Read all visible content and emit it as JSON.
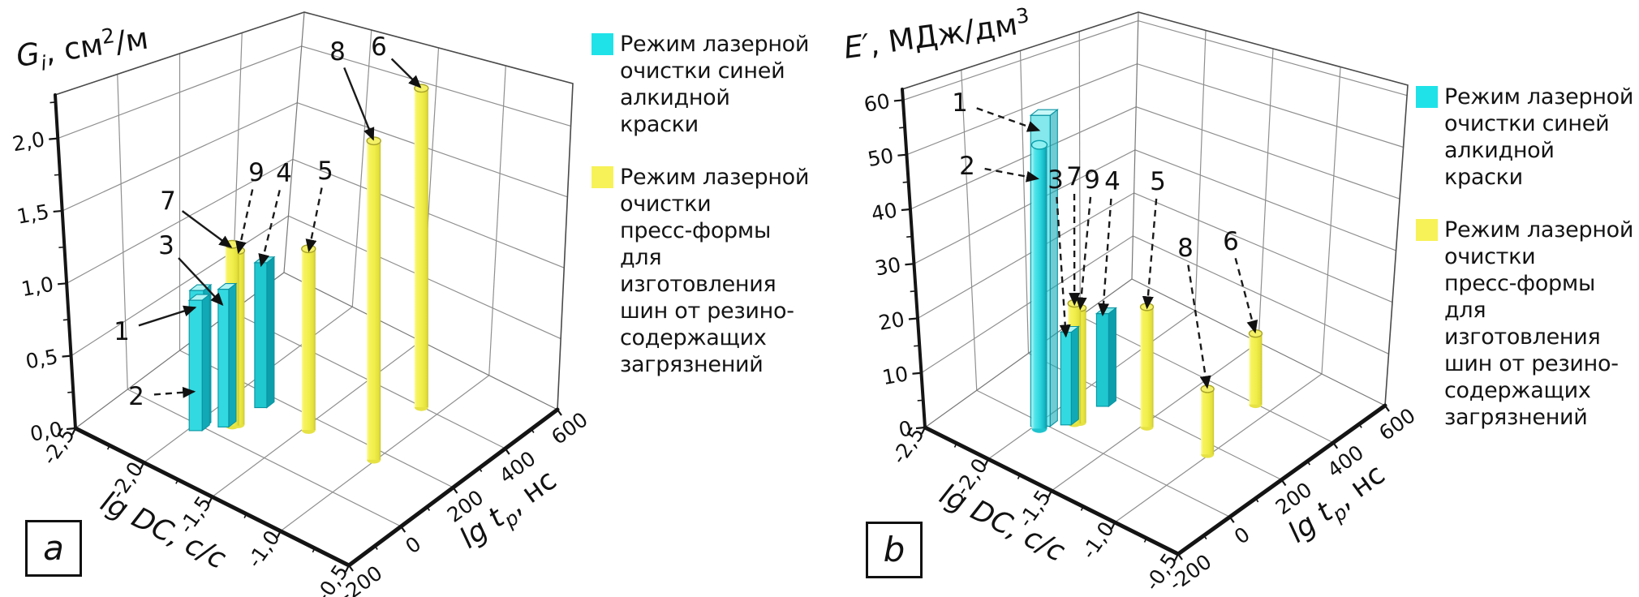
{
  "legend": {
    "series": [
      {
        "swatch_color": "#1fe2e9",
        "label": "Режим лазерной\nочистки синей\nалкидной краски"
      },
      {
        "swatch_color": "#f7f257",
        "label": "Режим лазерной\nочистки\nпресс-формы\nдля изготовления\nшин от резино-\nсодержащих\nзагрязнений"
      }
    ]
  },
  "chart_data": [
    {
      "type": "bar",
      "projection": "3d",
      "panel_letter": "a",
      "axes": {
        "z": {
          "label_text": "Gi, см²/м",
          "label_parts": {
            "head": "G",
            "sub": "i",
            "mid": ", см",
            "sup": "2",
            "tail": "/м"
          },
          "max": 2.3,
          "ticks": [
            {
              "value": 0.0,
              "label": "0,0"
            },
            {
              "value": 0.5,
              "label": "0,5"
            },
            {
              "value": 1.0,
              "label": "1,0"
            },
            {
              "value": 1.5,
              "label": "1,5"
            },
            {
              "value": 2.0,
              "label": "2,0"
            }
          ]
        },
        "x": {
          "label": "lg DC, с/с",
          "range": [
            -2.5,
            -0.5
          ],
          "ticks": [
            {
              "value": -2.5,
              "label": "-2,5"
            },
            {
              "value": -2.0,
              "label": "-2,0"
            },
            {
              "value": -1.5,
              "label": "-1,5"
            },
            {
              "value": -1.0,
              "label": "-1,0"
            },
            {
              "value": -0.5,
              "label": "-0,5"
            }
          ]
        },
        "y": {
          "label_text": "lg tp, нс",
          "label_parts": {
            "head": "lg t",
            "sub": "p",
            "tail": ", нс"
          },
          "range": [
            -200,
            600
          ],
          "ticks": [
            {
              "value": -200,
              "label": "-200"
            },
            {
              "value": 0,
              "label": "0"
            },
            {
              "value": 200,
              "label": "200"
            },
            {
              "value": 400,
              "label": "400"
            },
            {
              "value": 600,
              "label": "600"
            }
          ]
        }
      },
      "bars": [
        {
          "mode": "1",
          "series": 0,
          "shape": "prism",
          "lg_dc": -1.97,
          "t_p_ns": -13,
          "value": 0.95
        },
        {
          "mode": "2",
          "series": 0,
          "shape": "prism",
          "lg_dc": -1.96,
          "t_p_ns": -22,
          "value": 0.9
        },
        {
          "mode": "3",
          "series": 0,
          "shape": "prism",
          "lg_dc": -1.86,
          "t_p_ns": 32,
          "value": 0.95
        },
        {
          "mode": "4",
          "series": 0,
          "shape": "prism",
          "lg_dc": -1.81,
          "t_p_ns": 149,
          "value": 1.0
        },
        {
          "mode": "5",
          "series": 1,
          "shape": "cylinder",
          "lg_dc": -1.47,
          "t_p_ns": 154,
          "value": 1.25
        },
        {
          "mode": "6",
          "series": 1,
          "shape": "cylinder",
          "lg_dc": -1.11,
          "t_p_ns": 398,
          "value": 2.2
        },
        {
          "mode": "7",
          "series": 1,
          "shape": "cylinder",
          "lg_dc": -1.83,
          "t_p_ns": 50,
          "value": 1.25
        },
        {
          "mode": "8",
          "series": 1,
          "shape": "cylinder",
          "lg_dc": -1.01,
          "t_p_ns": 163,
          "value": 2.2
        },
        {
          "mode": "9",
          "series": 1,
          "shape": "cylinder",
          "lg_dc": -1.81,
          "t_p_ns": 62,
          "value": 1.2
        }
      ]
    },
    {
      "type": "bar",
      "projection": "3d",
      "panel_letter": "b",
      "axes": {
        "z": {
          "label_text": "E′, МДж/дм³",
          "label_parts": {
            "head": "E′",
            "sub": "",
            "mid": ", МДж/дм",
            "sup": "3",
            "tail": ""
          },
          "max": 62,
          "ticks": [
            {
              "value": 0,
              "label": "0"
            },
            {
              "value": 10,
              "label": "10"
            },
            {
              "value": 20,
              "label": "20"
            },
            {
              "value": 30,
              "label": "30"
            },
            {
              "value": 40,
              "label": "40"
            },
            {
              "value": 50,
              "label": "50"
            },
            {
              "value": 60,
              "label": "60"
            }
          ]
        },
        "x": {
          "label": "lg DC, с/с",
          "range": [
            -2.5,
            -0.5
          ],
          "ticks": [
            {
              "value": -2.5,
              "label": "-2,5"
            },
            {
              "value": -2.0,
              "label": "-2,0"
            },
            {
              "value": -1.5,
              "label": "-1,5"
            },
            {
              "value": -1.0,
              "label": "-1,0"
            },
            {
              "value": -0.5,
              "label": "-0,5"
            }
          ]
        },
        "y": {
          "label_text": "lg tp, нс",
          "label_parts": {
            "head": "lg t",
            "sub": "p",
            "tail": ", нс"
          },
          "range": [
            -200,
            600
          ],
          "ticks": [
            {
              "value": -200,
              "label": "-200"
            },
            {
              "value": 0,
              "label": "0"
            },
            {
              "value": 200,
              "label": "200"
            },
            {
              "value": 400,
              "label": "400"
            },
            {
              "value": 600,
              "label": "600"
            }
          ]
        }
      },
      "bars": [
        {
          "mode": "1",
          "series": 0,
          "shape": "prism",
          "translucent": true,
          "lg_dc": -1.97,
          "t_p_ns": -13,
          "value": 57
        },
        {
          "mode": "2",
          "series": 0,
          "shape": "cylinder",
          "lg_dc": -1.96,
          "t_p_ns": -22,
          "value": 52
        },
        {
          "mode": "3",
          "series": 0,
          "shape": "prism",
          "lg_dc": -1.86,
          "t_p_ns": 32,
          "value": 17
        },
        {
          "mode": "4",
          "series": 0,
          "shape": "prism",
          "lg_dc": -1.81,
          "t_p_ns": 149,
          "value": 17
        },
        {
          "mode": "5",
          "series": 1,
          "shape": "cylinder",
          "lg_dc": -1.47,
          "t_p_ns": 154,
          "value": 22
        },
        {
          "mode": "6",
          "series": 1,
          "shape": "cylinder",
          "lg_dc": -1.11,
          "t_p_ns": 398,
          "value": 13
        },
        {
          "mode": "7",
          "series": 1,
          "shape": "cylinder",
          "lg_dc": -1.83,
          "t_p_ns": 50,
          "value": 22
        },
        {
          "mode": "8",
          "series": 1,
          "shape": "cylinder",
          "lg_dc": -1.01,
          "t_p_ns": 163,
          "value": 12
        },
        {
          "mode": "9",
          "series": 1,
          "shape": "cylinder",
          "lg_dc": -1.81,
          "t_p_ns": 62,
          "value": 21
        }
      ]
    }
  ]
}
